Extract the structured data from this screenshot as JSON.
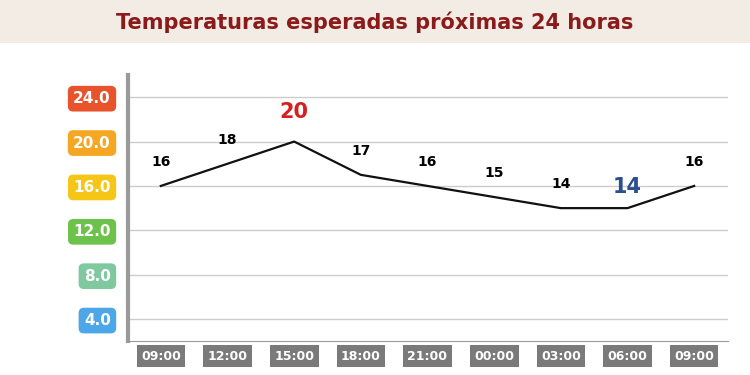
{
  "chart_data": {
    "type": "line",
    "title": "Temperaturas esperadas próximas 24 horas",
    "categories": [
      "09:00",
      "12:00",
      "15:00",
      "18:00",
      "21:00",
      "00:00",
      "03:00",
      "06:00",
      "09:00"
    ],
    "values": [
      16,
      18,
      20,
      17,
      16,
      15,
      14,
      14,
      16
    ],
    "color": "#111111",
    "ylim": [
      2,
      26
    ],
    "yticks": [
      {
        "value": 4,
        "label": "4.0"
      },
      {
        "value": 8,
        "label": "8.0"
      },
      {
        "value": 12,
        "label": "12.0"
      },
      {
        "value": 16,
        "label": "16.0"
      },
      {
        "value": 20,
        "label": "20.0"
      },
      {
        "value": 24,
        "label": "24.0"
      }
    ],
    "grid": true,
    "data_labels": true
  }
}
